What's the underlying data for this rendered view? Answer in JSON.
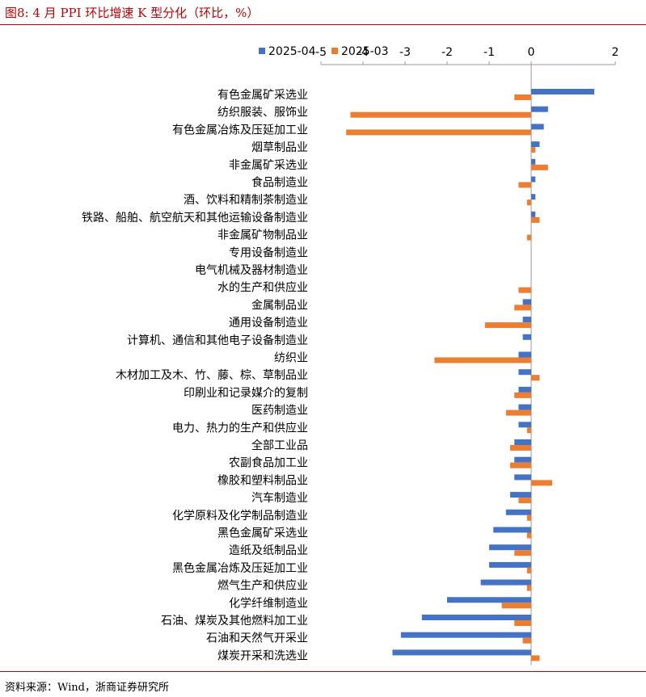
{
  "header": {
    "title": "图8:  4 月 PPI 环比增速 K 型分化（环比，%）"
  },
  "footer": {
    "source": "资料来源：Wind，浙商证券研究所"
  },
  "colors": {
    "accent": "#c00000",
    "series_2025_04": "#4472c4",
    "series_2025_03": "#ed7d31"
  },
  "chart_data": {
    "type": "bar",
    "orientation": "horizontal",
    "xlim": [
      -5,
      2
    ],
    "xticks": [
      "-5",
      "-4",
      "-3",
      "-2",
      "-1",
      "0",
      "2"
    ],
    "xtick_values": [
      -5,
      -4,
      -3,
      -2,
      -1,
      0,
      2
    ],
    "legend_position": "top",
    "grid": false,
    "categories": [
      "有色金属矿采选业",
      "纺织服装、服饰业",
      "有色金属冶炼及压延加工业",
      "烟草制品业",
      "非金属矿采选业",
      "食品制造业",
      "酒、饮料和精制茶制造业",
      "铁路、船舶、航空航天和其他运输设备制造业",
      "非金属矿物制品业",
      "专用设备制造业",
      "电气机械及器材制造业",
      "水的生产和供应业",
      "金属制品业",
      "通用设备制造业",
      "计算机、通信和其他电子设备制造业",
      "纺织业",
      "木材加工及木、竹、藤、棕、草制品业",
      "印刷业和记录媒介的复制",
      "医药制造业",
      "电力、热力的生产和供应业",
      "全部工业品",
      "农副食品加工业",
      "橡胶和塑料制品业",
      "汽车制造业",
      "化学原料及化学制品制造业",
      "黑色金属矿采选业",
      "造纸及纸制品业",
      "黑色金属冶炼及压延加工业",
      "燃气生产和供应业",
      "化学纤维制造业",
      "石油、煤炭及其他燃料加工业",
      "石油和天然气开采业",
      "煤炭开采和洗选业"
    ],
    "series": [
      {
        "name": "2025-04",
        "values": [
          1.5,
          0.4,
          0.3,
          0.2,
          0.1,
          0.1,
          0.1,
          0.1,
          0.0,
          0.0,
          0.0,
          0.0,
          -0.2,
          -0.2,
          -0.2,
          -0.3,
          -0.3,
          -0.3,
          -0.3,
          -0.3,
          -0.4,
          -0.4,
          -0.4,
          -0.5,
          -0.6,
          -0.9,
          -1.0,
          -1.0,
          -1.2,
          -2.0,
          -2.6,
          -3.1,
          -3.3
        ]
      },
      {
        "name": "2025-03",
        "values": [
          -0.4,
          -4.3,
          -4.4,
          0.1,
          0.4,
          -0.3,
          -0.1,
          0.2,
          -0.1,
          0.0,
          0.0,
          -0.3,
          -0.4,
          -1.1,
          0.0,
          -2.3,
          0.2,
          -0.4,
          -0.6,
          -0.1,
          -0.5,
          -0.5,
          0.5,
          -0.3,
          -0.1,
          -0.1,
          -0.4,
          -0.1,
          -0.1,
          -0.7,
          -0.4,
          -0.2,
          0.2
        ]
      }
    ]
  }
}
